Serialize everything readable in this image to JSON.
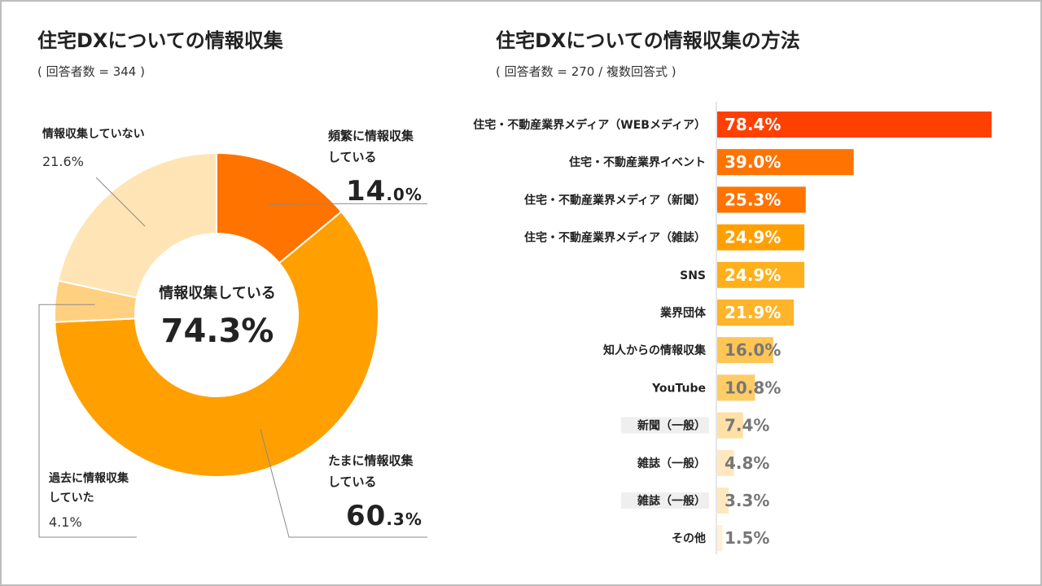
{
  "left_chart": {
    "title": "住宅DXについての情報収集",
    "subtitle": "( 回答者数 = 344 )",
    "center_label": "情報収集している",
    "center_value": "74.3%",
    "labels": {
      "frequent_name_1": "頻繁に情報収集",
      "frequent_name_2": "している",
      "frequent_int": "14",
      "frequent_dec": ".0%",
      "sometimes_name_1": "たまに情報収集",
      "sometimes_name_2": "している",
      "sometimes_int": "60",
      "sometimes_dec": ".3%",
      "past_name_1": "過去に情報収集",
      "past_name_2": "していた",
      "past_pct": "4.1%",
      "none_name": "情報収集していない",
      "none_pct": "21.6%"
    }
  },
  "right_chart": {
    "title": "住宅DXについての情報収集の方法",
    "subtitle": "( 回答者数 = 270 / 複数回答式 )"
  },
  "chart_data": [
    {
      "type": "pie",
      "title": "住宅DXについての情報収集",
      "categories": [
        "頻繁に情報収集している",
        "たまに情報収集している",
        "過去に情報収集していた",
        "情報収集していない"
      ],
      "values": [
        14.0,
        60.3,
        4.1,
        21.6
      ],
      "colors": [
        "#ff7300",
        "#ffa000",
        "#ffd080",
        "#ffe4b5"
      ],
      "center_text": "情報収集している 74.3%"
    },
    {
      "type": "bar",
      "orientation": "horizontal",
      "title": "住宅DXについての情報収集の方法",
      "categories": [
        "住宅・不動産業界メディア（WEBメディア）",
        "住宅・不動産業界イベント",
        "住宅・不動産業界メディア（新聞）",
        "住宅・不動産業界メディア（雑誌）",
        "SNS",
        "業界団体",
        "知人からの情報収集",
        "YouTube",
        "新聞（一般）",
        "雑誌（一般）",
        "雑誌（一般）",
        "その他"
      ],
      "values": [
        78.4,
        39.0,
        25.3,
        24.9,
        24.9,
        21.9,
        16.0,
        10.8,
        7.4,
        4.8,
        3.3,
        1.5
      ],
      "value_labels": [
        "78.4%",
        "39.0%",
        "25.3%",
        "24.9%",
        "24.9%",
        "21.9%",
        "16.0%",
        "10.8%",
        "7.4%",
        "4.8%",
        "3.3%",
        "1.5%"
      ],
      "colors": [
        "#ff4000",
        "#ff7300",
        "#ff7300",
        "#ffa000",
        "#ffb01a",
        "#ffb42a",
        "#ffc555",
        "#ffcc66",
        "#ffe0a6",
        "#ffe8c0",
        "#ffe8c0",
        "#fff0d6"
      ],
      "label_colors": [
        "#ffffff",
        "#ffffff",
        "#ffffff",
        "#ffffff",
        "#ffffff",
        "#ffffff",
        "#777777",
        "#777777",
        "#777777",
        "#777777",
        "#777777",
        "#777777"
      ],
      "xlim": [
        0,
        100
      ]
    }
  ]
}
